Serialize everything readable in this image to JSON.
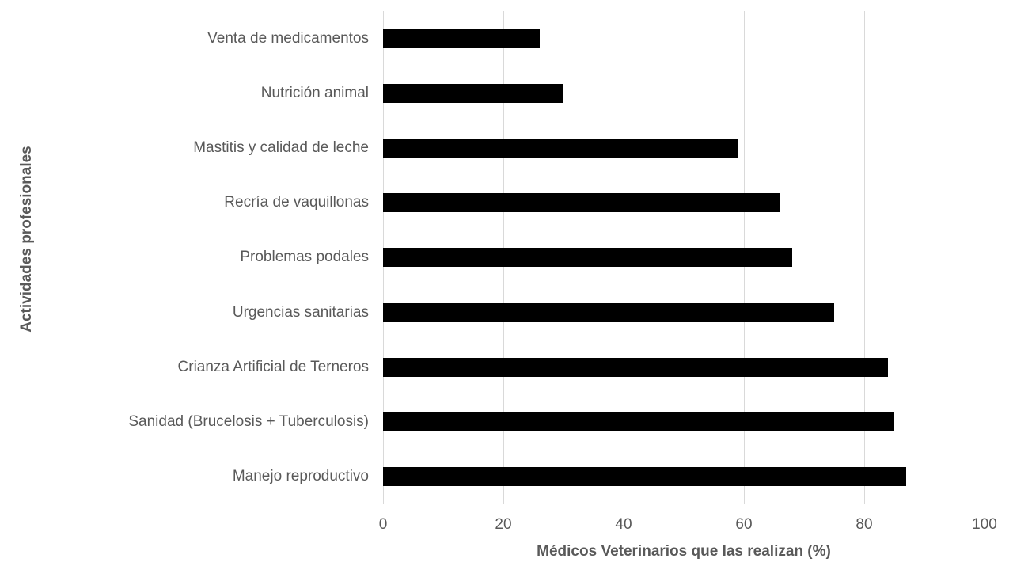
{
  "chart_data": {
    "type": "bar",
    "orientation": "horizontal",
    "title": "",
    "xlabel": "Médicos Veterinarios que las realizan (%)",
    "ylabel": "Actividades profesionales",
    "xlim": [
      0,
      100
    ],
    "xticks": [
      "0",
      "20",
      "40",
      "60",
      "80",
      "100"
    ],
    "grid": true,
    "legend": null,
    "bar_color": "#000000",
    "categories": [
      "Venta de medicamentos",
      "Nutrición animal",
      "Mastitis y calidad de leche",
      "Recría de vaquillonas",
      "Problemas podales",
      "Urgencias sanitarias",
      "Crianza Artificial de Terneros",
      "Sanidad (Brucelosis + Tuberculosis)",
      "Manejo reproductivo"
    ],
    "values": [
      26,
      30,
      59,
      66,
      68,
      75,
      84,
      85,
      87
    ]
  }
}
